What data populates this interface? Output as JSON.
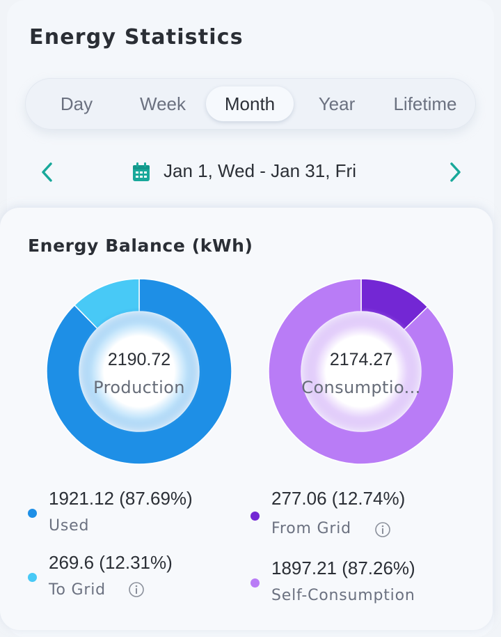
{
  "header": {
    "title": "Energy Statistics"
  },
  "tabs": [
    {
      "label": "Day",
      "active": false
    },
    {
      "label": "Week",
      "active": false
    },
    {
      "label": "Month",
      "active": true
    },
    {
      "label": "Year",
      "active": false
    },
    {
      "label": "Lifetime",
      "active": false
    }
  ],
  "date_range": {
    "label": "Jan 1, Wed - Jan 31, Fri"
  },
  "balance": {
    "title": "Energy Balance (kWh)",
    "production": {
      "value": "2190.72",
      "label": "Production",
      "segments": [
        {
          "name": "Used",
          "value": "1921.12 (87.69%)",
          "percent": 87.69,
          "color": "#1e8fe6"
        },
        {
          "name": "To Grid",
          "value": "269.6 (12.31%)",
          "percent": 12.31,
          "color": "#48c9f6"
        }
      ]
    },
    "consumption": {
      "value": "2174.27",
      "label": "Consumptio...",
      "segments": [
        {
          "name": "From Grid",
          "value": "277.06 (12.74%)",
          "percent": 12.74,
          "color": "#7327d4"
        },
        {
          "name": "Self-Consumption",
          "value": "1897.21 (87.26%)",
          "percent": 87.26,
          "color": "#b97cf6"
        }
      ]
    }
  },
  "colors": {
    "accent": "#18a89a"
  }
}
